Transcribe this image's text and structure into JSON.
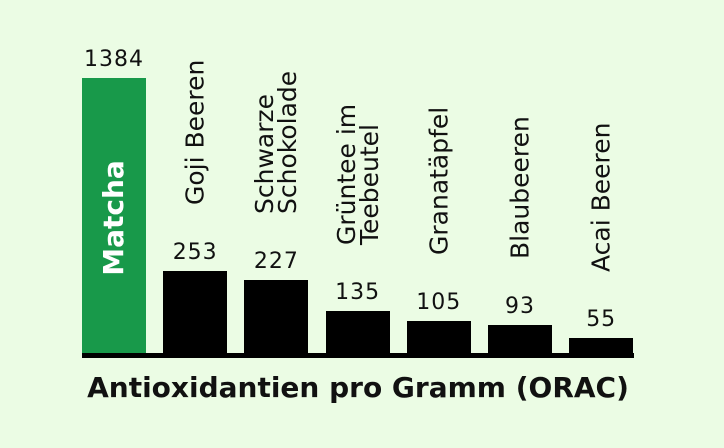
{
  "chart_data": {
    "type": "bar",
    "title": "Antioxidantien pro Gramm (ORAC)",
    "categories": [
      "Matcha",
      "Goji Beeren",
      "Schwarze Schokolade",
      "Grüntee im Teebeutel",
      "Granatäpfel",
      "Blaubeeren",
      "Acai Beeren"
    ],
    "values": [
      1384,
      253,
      227,
      135,
      105,
      93,
      55
    ],
    "bar_colors": [
      "#18994a",
      "#000000",
      "#000000",
      "#000000",
      "#000000",
      "#000000",
      "#000000"
    ],
    "background_color": "#ebfce4",
    "text_color": "#111111",
    "grid": false,
    "legend": "none"
  }
}
